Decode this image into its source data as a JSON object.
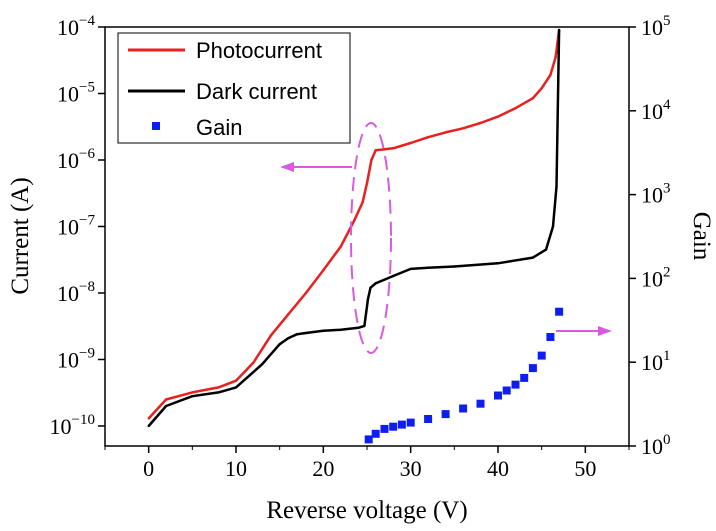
{
  "chart_data": {
    "type": "line",
    "title": "",
    "xlabel": "Reverse voltage (V)",
    "ylabel_left": "Current (A)",
    "ylabel_right": "Gain",
    "xlim": [
      -5,
      55
    ],
    "ylim_left": [
      5e-11,
      0.0001
    ],
    "ylim_right": [
      1,
      100000
    ],
    "x_ticks": [
      0,
      10,
      20,
      30,
      40,
      50
    ],
    "x_tick_labels": [
      "0",
      "10",
      "20",
      "30",
      "40",
      "50"
    ],
    "y_left_ticks": [
      {
        "value": 1e-10,
        "base": "10",
        "exp": "−10"
      },
      {
        "value": 1e-09,
        "base": "10",
        "exp": "−9"
      },
      {
        "value": 1e-08,
        "base": "10",
        "exp": "−8"
      },
      {
        "value": 1e-07,
        "base": "10",
        "exp": "−7"
      },
      {
        "value": 1e-06,
        "base": "10",
        "exp": "−6"
      },
      {
        "value": 1e-05,
        "base": "10",
        "exp": "−5"
      },
      {
        "value": 0.0001,
        "base": "10",
        "exp": "−4"
      }
    ],
    "y_right_ticks": [
      {
        "value": 1,
        "base": "10",
        "exp": "0"
      },
      {
        "value": 10,
        "base": "10",
        "exp": "1"
      },
      {
        "value": 100,
        "base": "10",
        "exp": "2"
      },
      {
        "value": 1000,
        "base": "10",
        "exp": "3"
      },
      {
        "value": 10000,
        "base": "10",
        "exp": "4"
      },
      {
        "value": 100000,
        "base": "10",
        "exp": "5"
      }
    ],
    "legend_position": "top-left",
    "series": [
      {
        "name": "Photocurrent",
        "axis": "left",
        "style": "line",
        "color": "#e8201f",
        "x": [
          0,
          2,
          5,
          8,
          10,
          12,
          14,
          16,
          18,
          20,
          22,
          23.5,
          24.5,
          25,
          25.5,
          26,
          28,
          30,
          32,
          34,
          36,
          38,
          40,
          42,
          44,
          45,
          46,
          46.6,
          47
        ],
        "y": [
          1.3e-10,
          2.5e-10,
          3.2e-10,
          3.8e-10,
          4.8e-10,
          9e-10,
          2.3e-09,
          4.8e-09,
          1e-08,
          2.2e-08,
          5e-08,
          1.2e-07,
          2.3e-07,
          4.5e-07,
          1e-06,
          1.4e-06,
          1.5e-06,
          1.8e-06,
          2.2e-06,
          2.6e-06,
          3e-06,
          3.6e-06,
          4.5e-06,
          6e-06,
          8.5e-06,
          1.2e-05,
          1.9e-05,
          3.5e-05,
          9e-05
        ]
      },
      {
        "name": "Dark current",
        "axis": "left",
        "style": "line",
        "color": "#000000",
        "x": [
          0,
          2,
          5,
          8,
          10,
          12,
          13,
          14,
          15,
          16,
          17,
          18,
          19,
          20,
          22,
          24,
          24.7,
          25.1,
          25.4,
          26,
          28,
          30,
          32,
          35,
          40,
          44,
          45.5,
          46.3,
          46.7,
          47
        ],
        "y": [
          1e-10,
          2e-10,
          2.8e-10,
          3.2e-10,
          3.8e-10,
          6.5e-10,
          8.5e-10,
          1.2e-09,
          1.7e-09,
          2.1e-09,
          2.4e-09,
          2.5e-09,
          2.6e-09,
          2.7e-09,
          2.8e-09,
          3e-09,
          3.2e-09,
          8e-09,
          1.2e-08,
          1.4e-08,
          1.8e-08,
          2.3e-08,
          2.4e-08,
          2.5e-08,
          2.8e-08,
          3.4e-08,
          4.5e-08,
          1e-07,
          4e-07,
          9e-05
        ]
      },
      {
        "name": "Gain",
        "axis": "right",
        "style": "marker",
        "color": "#0f1ef0",
        "x": [
          25.2,
          26,
          27,
          28,
          29,
          30,
          32,
          34,
          36,
          38,
          40,
          41,
          42,
          43,
          44,
          45,
          46,
          47
        ],
        "y": [
          1.2,
          1.4,
          1.6,
          1.7,
          1.8,
          1.9,
          2.1,
          2.4,
          2.8,
          3.2,
          4,
          4.6,
          5.4,
          6.5,
          8.5,
          12,
          20,
          40
        ]
      }
    ],
    "annotations": [
      {
        "name": "left-arrow",
        "points_to": "left axis"
      },
      {
        "name": "right-arrow",
        "points_to": "right axis"
      },
      {
        "name": "dashed-ellipse",
        "around": "x ≈ 25"
      }
    ]
  }
}
